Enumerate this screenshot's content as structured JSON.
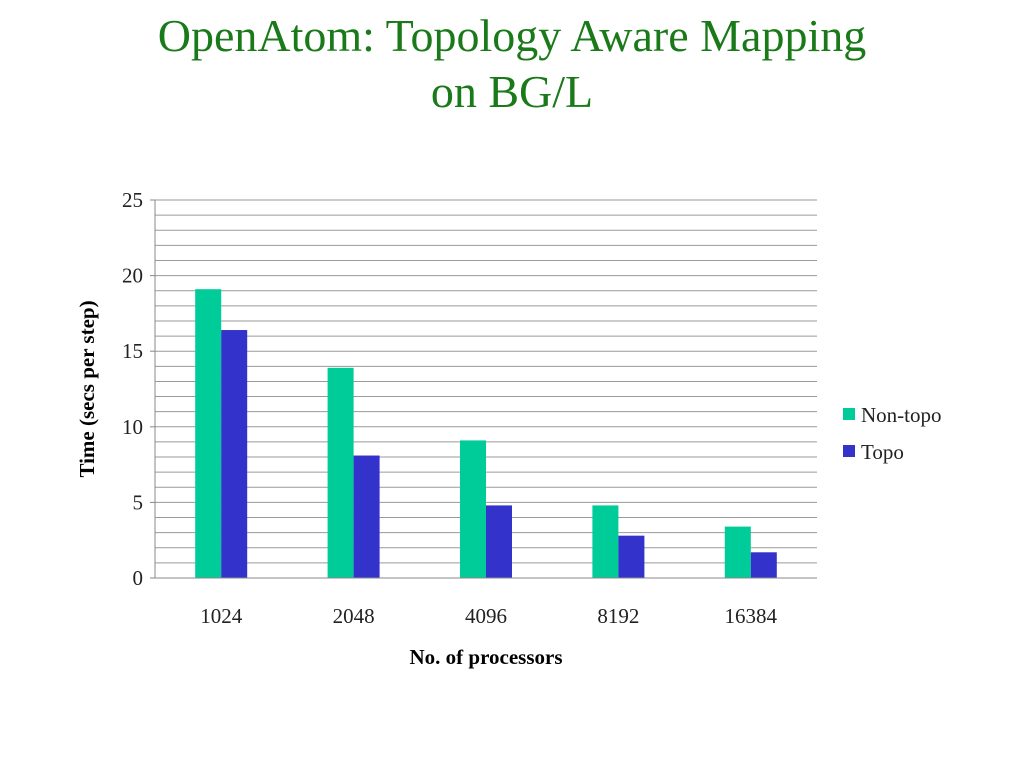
{
  "slide": {
    "title_line1": "OpenAtom: Topology Aware Mapping",
    "title_line2": "on BG/L"
  },
  "chart_data": {
    "type": "bar",
    "categories": [
      "1024",
      "2048",
      "4096",
      "8192",
      "16384"
    ],
    "series": [
      {
        "name": "Non-topo",
        "color": "#00cc99",
        "values": [
          19.1,
          13.9,
          9.1,
          4.8,
          3.4
        ]
      },
      {
        "name": "Topo",
        "color": "#3333cc",
        "values": [
          16.4,
          8.1,
          4.8,
          2.8,
          1.7
        ]
      }
    ],
    "xlabel": "No. of processors",
    "ylabel": "Time (secs per step)",
    "ylim": [
      0,
      25
    ],
    "yticks": [
      0,
      5,
      10,
      15,
      20,
      25
    ],
    "grid": true,
    "legend": "right"
  }
}
